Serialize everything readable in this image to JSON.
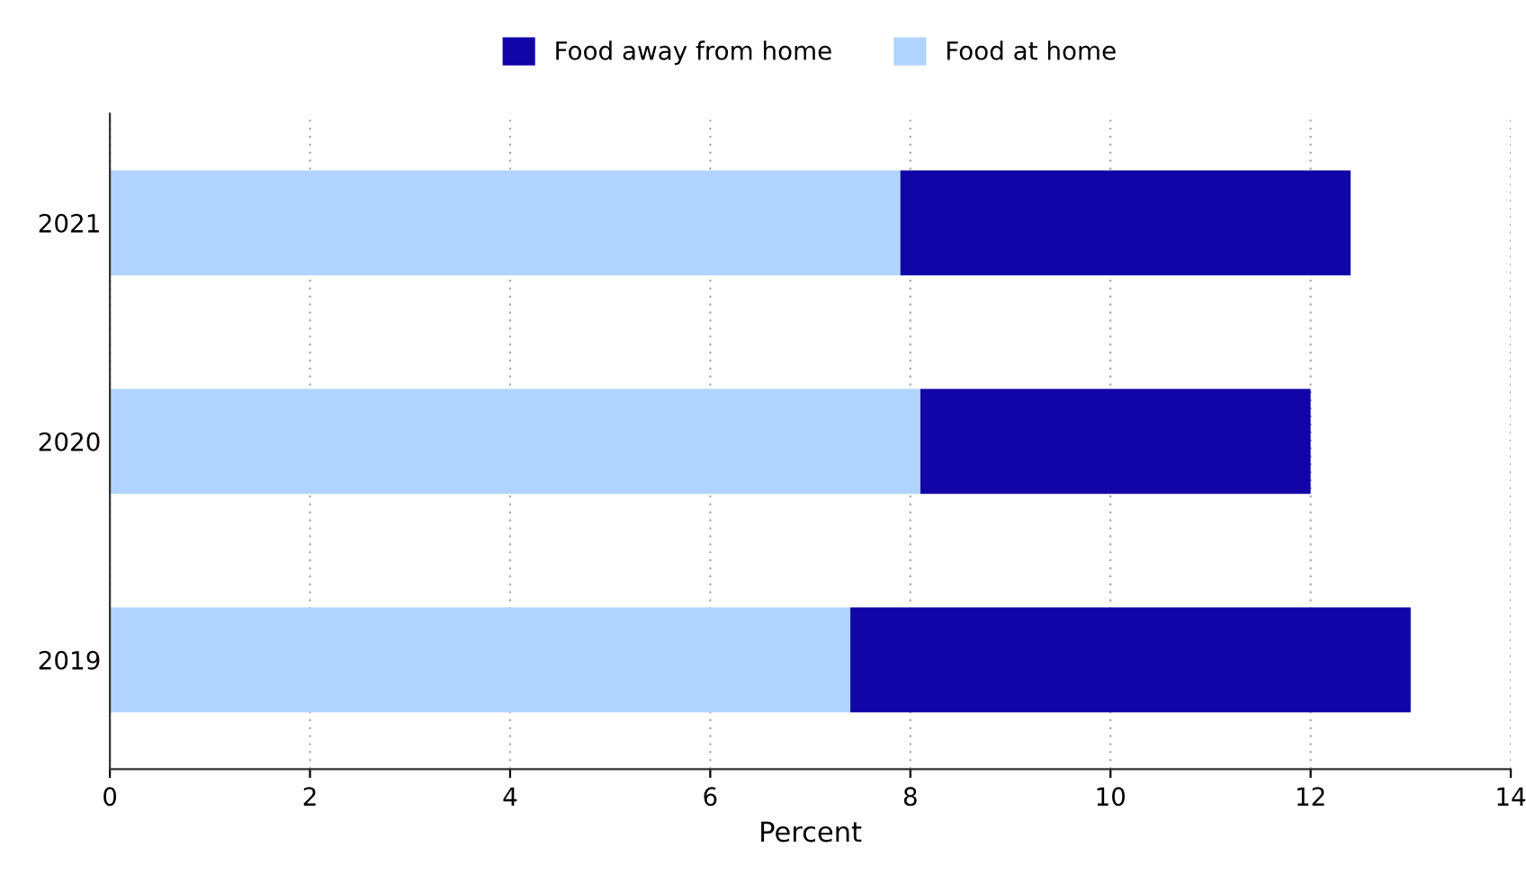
{
  "chart_data": {
    "type": "bar",
    "orientation": "horizontal",
    "stacked": true,
    "categories": [
      "2021",
      "2020",
      "2019"
    ],
    "series": [
      {
        "name": "Food at home",
        "color": "#b0d4ff",
        "values": [
          7.9,
          8.1,
          7.4
        ]
      },
      {
        "name": "Food away from home",
        "color": "#1105a8",
        "values": [
          4.5,
          3.9,
          5.6
        ]
      }
    ],
    "xlabel": "Percent",
    "xlim": [
      0,
      14
    ],
    "xticks": [
      0,
      2,
      4,
      6,
      8,
      10,
      12,
      14
    ],
    "grid": "x",
    "legend": "top"
  }
}
